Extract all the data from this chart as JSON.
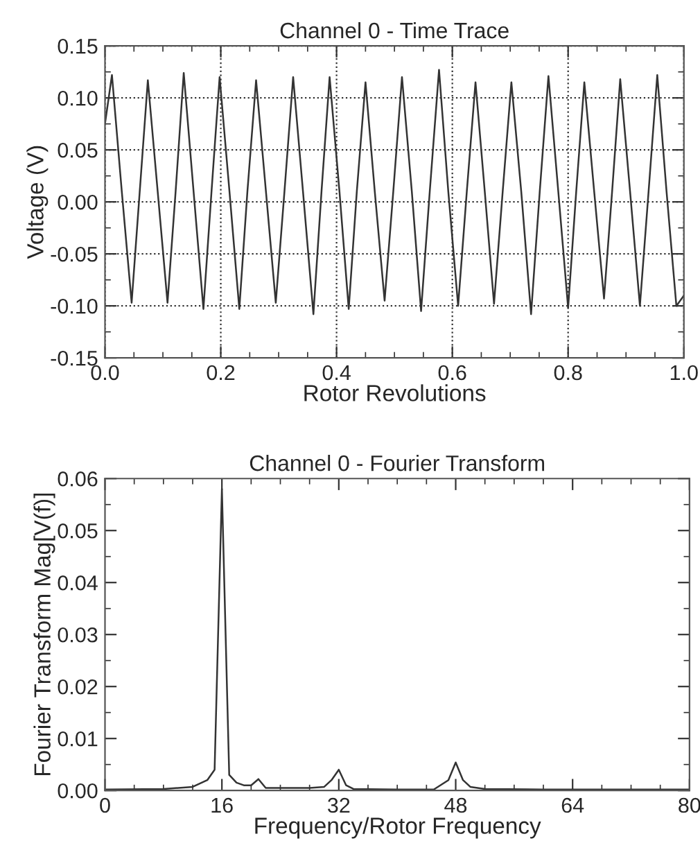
{
  "chart_data": [
    {
      "type": "line",
      "title": "Channel 0 - Time Trace",
      "xlabel": "Rotor Revolutions",
      "ylabel": "Voltage (V)",
      "x": [
        0,
        0.012,
        0.029,
        0.046,
        0.06,
        0.074,
        0.091,
        0.108,
        0.122,
        0.136,
        0.153,
        0.17,
        0.184,
        0.198,
        0.215,
        0.232,
        0.246,
        0.261,
        0.278,
        0.295,
        0.31,
        0.325,
        0.342,
        0.36,
        0.374,
        0.388,
        0.405,
        0.421,
        0.435,
        0.45,
        0.466,
        0.483,
        0.498,
        0.513,
        0.53,
        0.546,
        0.561,
        0.577,
        0.593,
        0.61,
        0.625,
        0.64,
        0.656,
        0.672,
        0.687,
        0.702,
        0.719,
        0.736,
        0.751,
        0.766,
        0.783,
        0.8,
        0.814,
        0.828,
        0.845,
        0.862,
        0.876,
        0.89,
        0.907,
        0.924,
        0.939,
        0.954,
        0.97,
        0.987,
        1.0
      ],
      "series": [
        {
          "color": "#333333",
          "values": [
            0.075,
            0.122,
            0.01,
            -0.097,
            0.01,
            0.117,
            0.01,
            -0.097,
            0.01,
            0.124,
            0.01,
            -0.103,
            0.01,
            0.12,
            0.01,
            -0.103,
            0.01,
            0.117,
            0.01,
            -0.097,
            0.01,
            0.12,
            0.01,
            -0.108,
            0.01,
            0.12,
            0.01,
            -0.103,
            0.01,
            0.115,
            0.01,
            -0.095,
            0.01,
            0.12,
            0.01,
            -0.105,
            0.01,
            0.127,
            0.01,
            -0.1,
            0.01,
            0.115,
            0.01,
            -0.098,
            0.01,
            0.115,
            0.01,
            -0.108,
            0.01,
            0.121,
            0.01,
            -0.102,
            0.01,
            0.115,
            0.01,
            -0.093,
            0.01,
            0.118,
            0.01,
            -0.1,
            0.01,
            0.122,
            0.01,
            -0.1,
            -0.09
          ]
        }
      ],
      "xlim": [
        0,
        1
      ],
      "xticks": [
        {
          "value": 0,
          "label": "0.0"
        },
        {
          "value": 0.2,
          "label": "0.2"
        },
        {
          "value": 0.4,
          "label": "0.4"
        },
        {
          "value": 0.6,
          "label": "0.6"
        },
        {
          "value": 0.8,
          "label": "0.8"
        },
        {
          "value": 1,
          "label": "1.0"
        }
      ],
      "ylim": [
        -0.15,
        0.15
      ],
      "yticks": [
        {
          "value": -0.15,
          "label": "-0.15"
        },
        {
          "value": -0.1,
          "label": "-0.10"
        },
        {
          "value": -0.05,
          "label": "-0.05"
        },
        {
          "value": 0,
          "label": "0.00"
        },
        {
          "value": 0.05,
          "label": "0.05"
        },
        {
          "value": 0.1,
          "label": "0.10"
        },
        {
          "value": 0.15,
          "label": "0.15"
        }
      ],
      "grid": true,
      "marker": "none",
      "line_style": "solid"
    },
    {
      "type": "line",
      "title": "Channel 0 - Fourier Transform",
      "xlabel": "Frequency/Rotor Frequency",
      "ylabel": "Fourier Transform Mag[V(f)]",
      "x": [
        0,
        8,
        12,
        14,
        15,
        16,
        17,
        18,
        19,
        20,
        21,
        22,
        24,
        28,
        30,
        31,
        32,
        33,
        34,
        40,
        45,
        47,
        48,
        49,
        50,
        52,
        60,
        80
      ],
      "series": [
        {
          "color": "#333333",
          "values": [
            0.0002,
            0.0003,
            0.0007,
            0.002,
            0.004,
            0.058,
            0.003,
            0.0015,
            0.001,
            0.001,
            0.0022,
            0.0005,
            0.0005,
            0.0005,
            0.0007,
            0.002,
            0.004,
            0.001,
            0.0003,
            0.0002,
            0.0002,
            0.002,
            0.0054,
            0.002,
            0.0007,
            0.0003,
            0.0002,
            0.0002
          ]
        }
      ],
      "xlim": [
        0,
        80
      ],
      "xticks": [
        0,
        16,
        32,
        48,
        64,
        80
      ],
      "ylim": [
        0,
        0.06
      ],
      "yticks": [
        {
          "value": 0,
          "label": "0.00"
        },
        {
          "value": 0.01,
          "label": "0.01"
        },
        {
          "value": 0.02,
          "label": "0.02"
        },
        {
          "value": 0.03,
          "label": "0.03"
        },
        {
          "value": 0.04,
          "label": "0.04"
        },
        {
          "value": 0.05,
          "label": "0.05"
        },
        {
          "value": 0.06,
          "label": "0.06"
        }
      ],
      "grid": false,
      "marker": "none",
      "line_style": "solid"
    }
  ]
}
